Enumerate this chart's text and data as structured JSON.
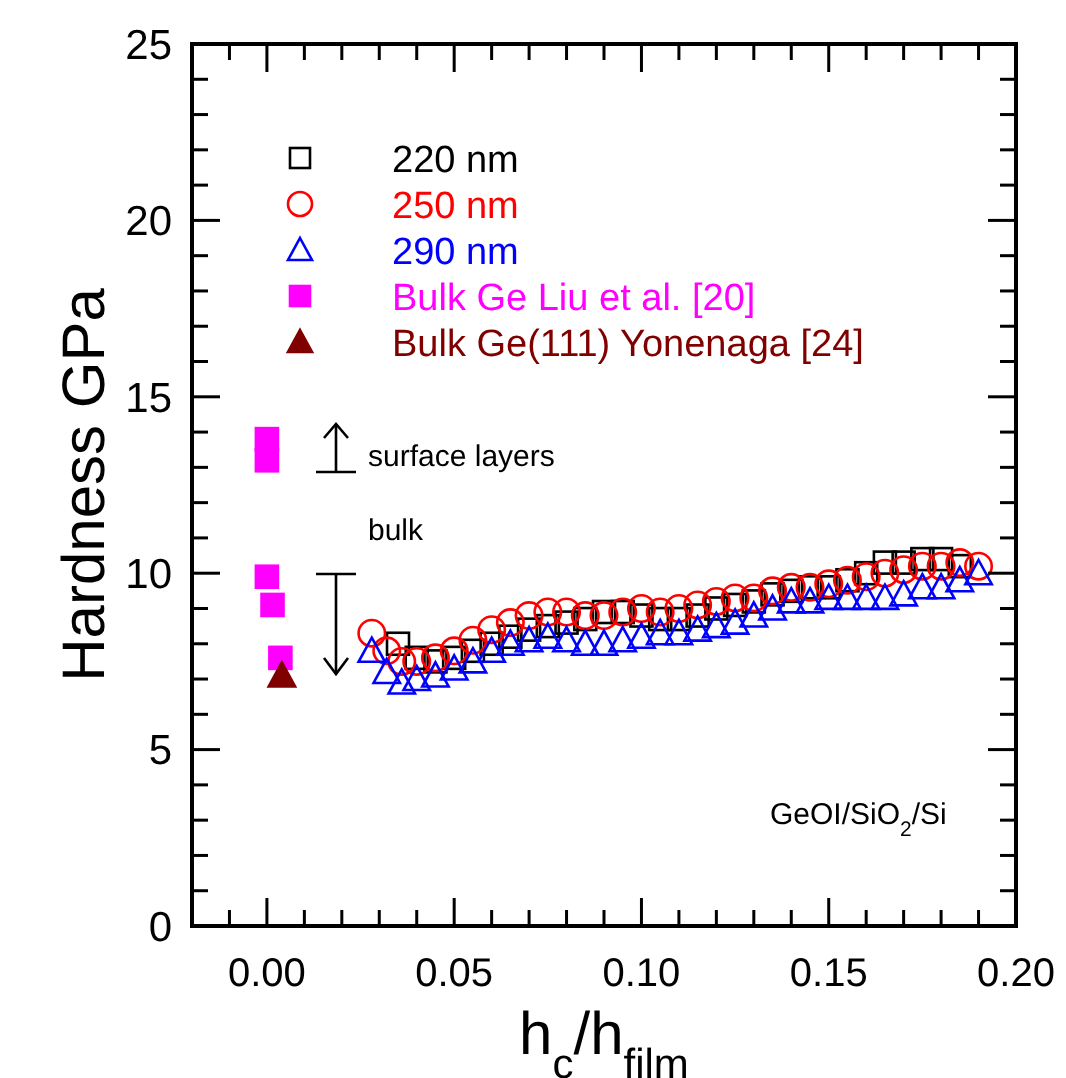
{
  "chart_data": {
    "type": "scatter",
    "xlabel": "h$_{c}$/h$_{film}$",
    "ylabel": "Hardness GPa",
    "xlim": [
      -0.02,
      0.2
    ],
    "ylim": [
      0,
      25
    ],
    "xticks": [
      {
        "value": -0.01,
        "label": null
      },
      {
        "value": 0,
        "label": "0.00"
      },
      {
        "value": 0.01,
        "label": null
      },
      {
        "value": 0.02,
        "label": null
      },
      {
        "value": 0.03,
        "label": null
      },
      {
        "value": 0.04,
        "label": null
      },
      {
        "value": 0.05,
        "label": "0.05"
      },
      {
        "value": 0.06,
        "label": null
      },
      {
        "value": 0.07,
        "label": null
      },
      {
        "value": 0.08,
        "label": null
      },
      {
        "value": 0.09,
        "label": null
      },
      {
        "value": 0.1,
        "label": "0.10"
      },
      {
        "value": 0.11,
        "label": null
      },
      {
        "value": 0.12,
        "label": null
      },
      {
        "value": 0.13,
        "label": null
      },
      {
        "value": 0.14,
        "label": null
      },
      {
        "value": 0.15,
        "label": "0.15"
      },
      {
        "value": 0.16,
        "label": null
      },
      {
        "value": 0.17,
        "label": null
      },
      {
        "value": 0.18,
        "label": null
      },
      {
        "value": 0.19,
        "label": null
      },
      {
        "value": 0.2,
        "label": "0.20"
      }
    ],
    "yticks": [
      0,
      {
        "value": 1,
        "label": null
      },
      {
        "value": 2,
        "label": null
      },
      {
        "value": 3,
        "label": null
      },
      {
        "value": 4,
        "label": null
      },
      5,
      {
        "value": 6,
        "label": null
      },
      {
        "value": 7,
        "label": null
      },
      {
        "value": 8,
        "label": null
      },
      {
        "value": 9,
        "label": null
      },
      10,
      {
        "value": 11,
        "label": null
      },
      {
        "value": 12,
        "label": null
      },
      {
        "value": 13,
        "label": null
      },
      {
        "value": 14,
        "label": null
      },
      15,
      {
        "value": 16,
        "label": null
      },
      {
        "value": 17,
        "label": null
      },
      {
        "value": 18,
        "label": null
      },
      {
        "value": 19,
        "label": null
      },
      20,
      {
        "value": 21,
        "label": null
      },
      {
        "value": 22,
        "label": null
      },
      {
        "value": 23,
        "label": null
      },
      {
        "value": 24,
        "label": null
      },
      25
    ],
    "grid": false,
    "legend": "top left",
    "annotations": [
      "surface layers",
      "bulk",
      "GeOI/SiO$_{2}$/Si"
    ],
    "series": [
      {
        "name": "220 nm",
        "color": "#000000",
        "marker": "square",
        "x": [
          0.035,
          0.04,
          0.045,
          0.05,
          0.055,
          0.06,
          0.065,
          0.07,
          0.075,
          0.08,
          0.085,
          0.09,
          0.095,
          0.1,
          0.105,
          0.11,
          0.115,
          0.12,
          0.125,
          0.13,
          0.135,
          0.14,
          0.145,
          0.15,
          0.155,
          0.16,
          0.165,
          0.17,
          0.175,
          0.18,
          0.185
        ],
        "values": [
          8.0,
          7.6,
          7.5,
          7.6,
          7.8,
          8.0,
          8.2,
          8.4,
          8.5,
          8.6,
          8.7,
          8.9,
          8.9,
          8.8,
          8.7,
          8.7,
          8.8,
          9.0,
          9.1,
          9.2,
          9.4,
          9.5,
          9.6,
          9.6,
          9.8,
          10.0,
          10.3,
          10.3,
          10.4,
          10.4,
          10.2
        ]
      },
      {
        "name": "250 nm",
        "color": "#ff0000",
        "marker": "circle",
        "x": [
          0.028,
          0.032,
          0.036,
          0.04,
          0.045,
          0.05,
          0.055,
          0.06,
          0.065,
          0.07,
          0.075,
          0.08,
          0.085,
          0.09,
          0.095,
          0.1,
          0.105,
          0.11,
          0.115,
          0.12,
          0.125,
          0.13,
          0.135,
          0.14,
          0.145,
          0.15,
          0.155,
          0.16,
          0.165,
          0.17,
          0.175,
          0.18,
          0.185,
          0.19
        ],
        "values": [
          8.3,
          7.8,
          7.5,
          7.5,
          7.6,
          7.8,
          8.1,
          8.4,
          8.6,
          8.8,
          8.9,
          8.9,
          8.8,
          8.8,
          8.9,
          9.0,
          8.9,
          9.0,
          9.1,
          9.2,
          9.3,
          9.3,
          9.5,
          9.6,
          9.6,
          9.7,
          9.8,
          9.9,
          10.0,
          10.1,
          10.2,
          10.2,
          10.3,
          10.2
        ]
      },
      {
        "name": "290 nm",
        "color": "#0000ff",
        "marker": "triangle",
        "x": [
          0.028,
          0.032,
          0.036,
          0.04,
          0.045,
          0.05,
          0.055,
          0.06,
          0.065,
          0.07,
          0.075,
          0.08,
          0.085,
          0.09,
          0.095,
          0.1,
          0.105,
          0.11,
          0.115,
          0.12,
          0.125,
          0.13,
          0.135,
          0.14,
          0.145,
          0.15,
          0.155,
          0.16,
          0.165,
          0.17,
          0.175,
          0.18,
          0.185,
          0.19
        ],
        "values": [
          7.8,
          7.2,
          6.9,
          7.0,
          7.1,
          7.3,
          7.5,
          7.8,
          8.0,
          8.1,
          8.2,
          8.1,
          8.0,
          8.0,
          8.1,
          8.2,
          8.3,
          8.3,
          8.4,
          8.5,
          8.6,
          8.8,
          9.0,
          9.2,
          9.2,
          9.3,
          9.3,
          9.3,
          9.3,
          9.4,
          9.6,
          9.6,
          9.8,
          10.0
        ]
      },
      {
        "name": "Bulk Ge Liu et al. [20]",
        "color": "#ff00ff",
        "marker": "square",
        "x": [
          0.0,
          0.0,
          0.0,
          0.0015,
          0.0036
        ],
        "values": [
          13.8,
          13.2,
          9.9,
          9.1,
          7.6
        ]
      },
      {
        "name": "Bulk Ge(111) Yonenaga [24]",
        "color": "#800000",
        "marker": "triangle",
        "x": [
          0.004
        ],
        "values": [
          7.1
        ]
      }
    ]
  }
}
